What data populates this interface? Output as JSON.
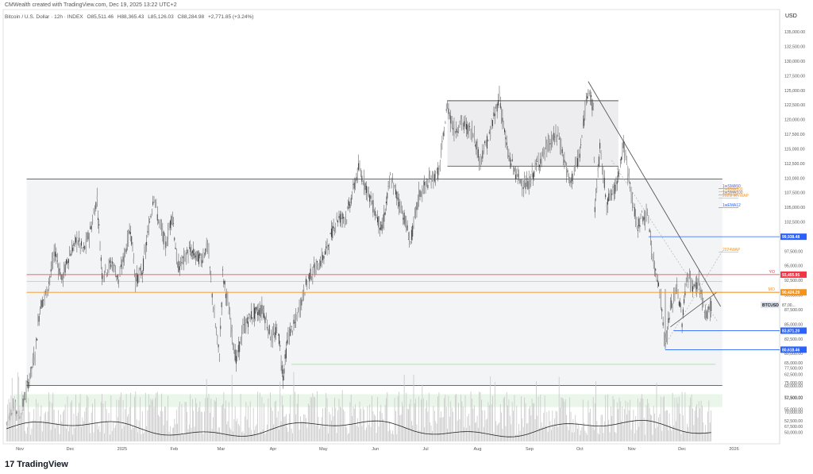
{
  "header": {
    "credit": "CMWealth created with TradingView.com, Dec 19, 2025 13:22 UTC+2"
  },
  "symbol_bar": {
    "name": "Bitcoin / U.S. Dollar · 12h · INDEX",
    "open": "O85,511.46",
    "high": "H88,365.43",
    "low": "L85,126.03",
    "close": "C88,284.98",
    "change": "+2,771.85 (+3.24%)"
  },
  "currency": "USD",
  "brand": {
    "logo": "17",
    "name": "TradingView"
  },
  "chart_data": {
    "type": "candlestick",
    "x_labels": [
      "Nov",
      "Dec",
      "2025",
      "Feb",
      "Mar",
      "Apr",
      "May",
      "Jun",
      "Jul",
      "Aug",
      "Sep",
      "Oct",
      "Nov",
      "Dec",
      "2026"
    ],
    "y_ticks": [
      "135,000.00",
      "132,500.00",
      "130,000.00",
      "127,500.00",
      "125,000.00",
      "122,500.00",
      "120,000.00",
      "117,500.00",
      "115,000.00",
      "112,500.00",
      "110,000.00",
      "107,500.00",
      "105,000.00",
      "102,500.00",
      "100,000.00",
      "97,500.00",
      "95,000.00",
      "92,500.00",
      "90,000.00",
      "87,500.00",
      "85,000.00",
      "82,500.00",
      "80,000.00",
      "77,500.00",
      "75,000.00",
      "72,500.00",
      "70,000.00",
      "67,500.00"
    ],
    "volume_ticks": [
      "65,000.00",
      "62,500.00",
      "60,000.00",
      "57,500.00",
      "55,000.00",
      "52,500.00",
      "50,000.00"
    ],
    "price_range": [
      66000,
      136500
    ],
    "series": [
      {
        "name": "BTCUSD",
        "points": [
          [
            "2024-10-24",
            68000
          ],
          [
            "2024-10-28",
            71000
          ],
          [
            "2024-11-01",
            69000
          ],
          [
            "2024-11-06",
            75000
          ],
          [
            "2024-11-10",
            80000
          ],
          [
            "2024-11-13",
            88000
          ],
          [
            "2024-11-17",
            90500
          ],
          [
            "2024-11-22",
            97500
          ],
          [
            "2024-11-26",
            92500
          ],
          [
            "2024-11-30",
            96500
          ],
          [
            "2024-12-05",
            99500
          ],
          [
            "2024-12-09",
            97500
          ],
          [
            "2024-12-13",
            101000
          ],
          [
            "2024-12-17",
            106500
          ],
          [
            "2024-12-20",
            93500
          ],
          [
            "2024-12-26",
            95500
          ],
          [
            "2024-12-30",
            92500
          ],
          [
            "2025-01-06",
            101500
          ],
          [
            "2025-01-09",
            92500
          ],
          [
            "2025-01-13",
            94000
          ],
          [
            "2025-01-20",
            107500
          ],
          [
            "2025-01-22",
            103500
          ],
          [
            "2025-01-27",
            98500
          ],
          [
            "2025-01-31",
            104000
          ],
          [
            "2025-02-03",
            94500
          ],
          [
            "2025-02-10",
            97500
          ],
          [
            "2025-02-17",
            96000
          ],
          [
            "2025-02-21",
            98500
          ],
          [
            "2025-02-25",
            86000
          ],
          [
            "2025-02-28",
            79500
          ],
          [
            "2025-03-02",
            93500
          ],
          [
            "2025-03-05",
            88500
          ],
          [
            "2025-03-10",
            78500
          ],
          [
            "2025-03-14",
            84000
          ],
          [
            "2025-03-19",
            86500
          ],
          [
            "2025-03-26",
            87500
          ],
          [
            "2025-03-31",
            82500
          ],
          [
            "2025-04-04",
            84000
          ],
          [
            "2025-04-07",
            76000
          ],
          [
            "2025-04-10",
            83000
          ],
          [
            "2025-04-14",
            85000
          ],
          [
            "2025-04-22",
            93000
          ],
          [
            "2025-04-28",
            95000
          ],
          [
            "2025-05-02",
            97000
          ],
          [
            "2025-05-09",
            103000
          ],
          [
            "2025-05-15",
            103500
          ],
          [
            "2025-05-22",
            111500
          ],
          [
            "2025-05-26",
            109000
          ],
          [
            "2025-06-01",
            104000
          ],
          [
            "2025-06-05",
            101000
          ],
          [
            "2025-06-10",
            110000
          ],
          [
            "2025-06-17",
            104500
          ],
          [
            "2025-06-22",
            99000
          ],
          [
            "2025-06-27",
            107000
          ],
          [
            "2025-07-03",
            109500
          ],
          [
            "2025-07-09",
            111000
          ],
          [
            "2025-07-14",
            122500
          ],
          [
            "2025-07-18",
            118000
          ],
          [
            "2025-07-22",
            119500
          ],
          [
            "2025-07-30",
            117500
          ],
          [
            "2025-08-02",
            113000
          ],
          [
            "2025-08-08",
            117000
          ],
          [
            "2025-08-14",
            124000
          ],
          [
            "2025-08-19",
            114000
          ],
          [
            "2025-08-25",
            110000
          ],
          [
            "2025-08-31",
            108500
          ],
          [
            "2025-09-05",
            112000
          ],
          [
            "2025-09-12",
            115500
          ],
          [
            "2025-09-18",
            117500
          ],
          [
            "2025-09-25",
            109000
          ],
          [
            "2025-10-01",
            114000
          ],
          [
            "2025-10-06",
            126000
          ],
          [
            "2025-10-09",
            121500
          ],
          [
            "2025-10-10",
            105000
          ],
          [
            "2025-10-13",
            115000
          ],
          [
            "2025-10-17",
            106000
          ],
          [
            "2025-10-22",
            108000
          ],
          [
            "2025-10-27",
            115500
          ],
          [
            "2025-10-31",
            109000
          ],
          [
            "2025-11-04",
            101500
          ],
          [
            "2025-11-07",
            103500
          ],
          [
            "2025-11-11",
            103000
          ],
          [
            "2025-11-14",
            95000
          ],
          [
            "2025-11-17",
            92500
          ],
          [
            "2025-11-21",
            81500
          ],
          [
            "2025-11-24",
            87500
          ],
          [
            "2025-11-28",
            91500
          ],
          [
            "2025-12-01",
            85500
          ],
          [
            "2025-12-04",
            93500
          ],
          [
            "2025-12-08",
            91000
          ],
          [
            "2025-12-11",
            92500
          ],
          [
            "2025-12-15",
            86000
          ],
          [
            "2025-12-17",
            87500
          ],
          [
            "2025-12-19",
            88285
          ]
        ]
      }
    ],
    "levels": [
      {
        "label": "99,938.48",
        "price": 99938,
        "color": "#2962ff",
        "start": "2025-11-11"
      },
      {
        "label": "YO",
        "tag": "93,455.95",
        "price": 93456,
        "color": "#f23645"
      },
      {
        "label": "MO",
        "tag": "90,424.29",
        "price": 90424,
        "color": "#f7931a"
      },
      {
        "tag": "BTCUSD",
        "value": "87,00...",
        "price": 88285,
        "color": "#131722",
        "box": "#e0e3eb"
      },
      {
        "tag": "83,871.20",
        "price": 83871,
        "color": "#2962ff",
        "start": "2025-11-26"
      },
      {
        "tag": "80,618.46",
        "price": 80618,
        "color": "#2962ff",
        "start": "2025-11-21"
      }
    ],
    "indicators": [
      "1wSMA50",
      "1wEMA100",
      "1wSMA100",
      "2025HRVWAP",
      "1wEMA12",
      "2024WAP"
    ]
  }
}
